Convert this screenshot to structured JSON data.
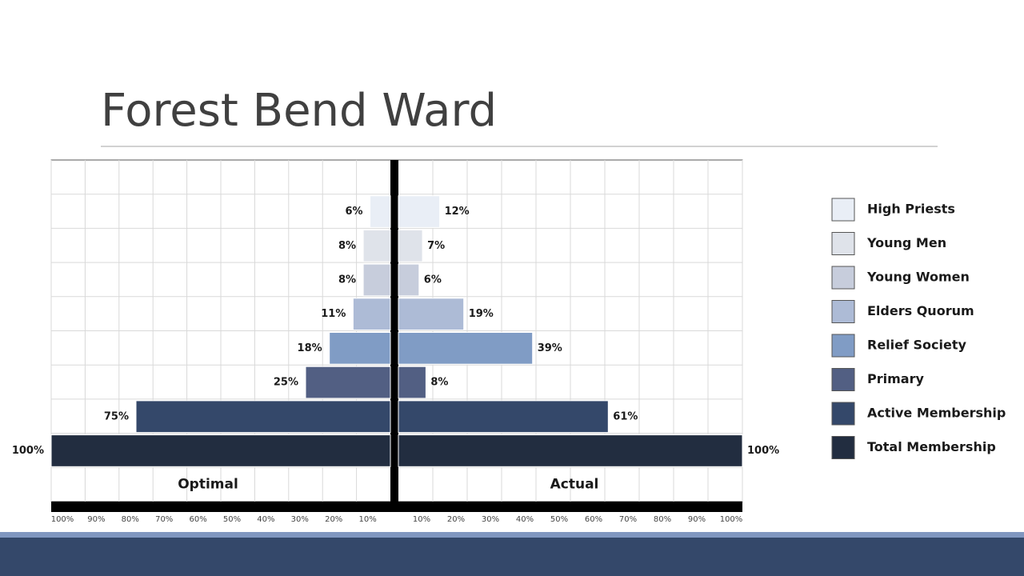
{
  "chart_data": {
    "type": "pyramid",
    "title": "Forest Bend Ward",
    "categories": [
      "High Priests",
      "Young Men",
      "Young Women",
      "Elders Quorum",
      "Relief Society",
      "Primary",
      "Active Membership",
      "Total Membership"
    ],
    "colors": [
      "#e9eef6",
      "#dfe3ea",
      "#c7cddc",
      "#adbbd6",
      "#809cc5",
      "#525f83",
      "#34486a",
      "#222d40"
    ],
    "series": [
      {
        "name": "Optimal",
        "values": [
          6,
          8,
          8,
          11,
          18,
          25,
          75,
          100
        ],
        "value_labels": [
          "6%",
          "8%",
          "8%",
          "11%",
          "18%",
          "25%",
          "75%",
          "100%"
        ]
      },
      {
        "name": "Actual",
        "values": [
          12,
          7,
          6,
          19,
          39,
          8,
          61,
          100
        ],
        "value_labels": [
          "12%",
          "7%",
          "6%",
          "19%",
          "39%",
          "8%",
          "61%",
          "100%"
        ]
      }
    ],
    "xlim": [
      0,
      100
    ],
    "xticks": [
      {
        "value": 10,
        "label": "10%"
      },
      {
        "value": 20,
        "label": "20%"
      },
      {
        "value": 30,
        "label": "30%"
      },
      {
        "value": 40,
        "label": "40%"
      },
      {
        "value": 50,
        "label": "50%"
      },
      {
        "value": 60,
        "label": "60%"
      },
      {
        "value": 70,
        "label": "70%"
      },
      {
        "value": 80,
        "label": "80%"
      },
      {
        "value": 90,
        "label": "90%"
      },
      {
        "value": 100,
        "label": "100%"
      }
    ],
    "grid": true,
    "legend": "right"
  }
}
